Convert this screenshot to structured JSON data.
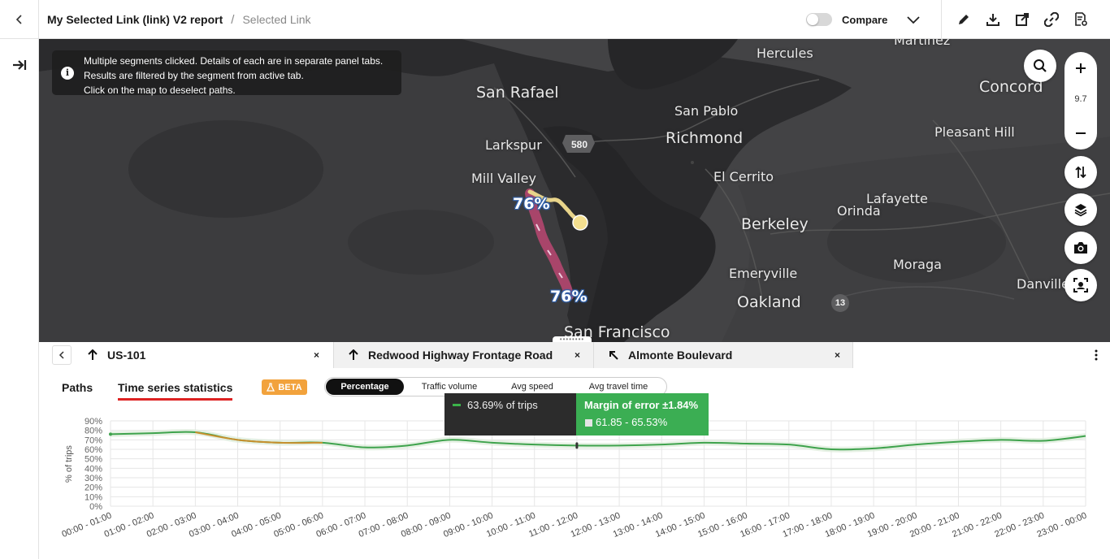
{
  "header": {
    "title": "My Selected Link (link) V2 report",
    "separator": "/",
    "subtitle": "Selected Link",
    "compare_label": "Compare"
  },
  "map": {
    "info_lines": [
      "Multiple segments clicked. Details of each are in separate panel tabs.",
      "Results are filtered by the segment from active tab.",
      "Click on the map to deselect paths."
    ],
    "zoom_level": "9.7",
    "places": {
      "hercules": "Hercules",
      "martinez": "Martinez",
      "concord": "Concord",
      "san_rafael": "San Rafael",
      "san_pablo": "San Pablo",
      "richmond": "Richmond",
      "pleasant_hill": "Pleasant Hill",
      "larkspur": "Larkspur",
      "mill_valley": "Mill Valley",
      "el_cerrito": "El Cerrito",
      "lafayette": "Lafayette",
      "berkeley": "Berkeley",
      "orinda": "Orinda",
      "moraga": "Moraga",
      "emeryville": "Emeryville",
      "oakland": "Oakland",
      "danville": "Danville",
      "san_francisco": "San Francisco"
    },
    "highway_580": "580",
    "highway_13": "13",
    "badges": [
      "76%",
      "76%"
    ]
  },
  "panel": {
    "tabs": [
      {
        "label": "US-101",
        "direction": "arrow-up-icon"
      },
      {
        "label": "Redwood Highway Frontage Road",
        "direction": "arrow-up-icon"
      },
      {
        "label": "Almonte Boulevard",
        "direction": "arrow-up-left-icon"
      }
    ],
    "close_glyph": "×",
    "subtabs": {
      "paths": "Paths",
      "time_series": "Time series statistics"
    },
    "beta_label": "BETA",
    "metrics": [
      "Percentage",
      "Traffic volume",
      "Avg speed",
      "Avg travel time"
    ]
  },
  "tooltip": {
    "value": "63.69% of trips",
    "margin": "Margin of error ±1.84%",
    "range": "61.85 - 65.53%"
  },
  "colors": {
    "series_line": "#3fa34d",
    "series_highlight": "#c8902e",
    "tooltip_green": "#3bae53",
    "route": "#a8456a",
    "route_alt": "#e8d48a"
  },
  "chart_data": {
    "type": "line",
    "ylabel": "% of trips",
    "y_ticks": [
      "0%",
      "10%",
      "20%",
      "30%",
      "40%",
      "50%",
      "60%",
      "70%",
      "80%",
      "90%"
    ],
    "ylim": [
      0,
      90
    ],
    "categories": [
      "00:00 - 01:00",
      "01:00 - 02:00",
      "02:00 - 03:00",
      "03:00 - 04:00",
      "04:00 - 05:00",
      "05:00 - 06:00",
      "06:00 - 07:00",
      "07:00 - 08:00",
      "08:00 - 09:00",
      "09:00 - 10:00",
      "10:00 - 11:00",
      "11:00 - 12:00",
      "12:00 - 13:00",
      "13:00 - 14:00",
      "14:00 - 15:00",
      "15:00 - 16:00",
      "16:00 - 17:00",
      "17:00 - 18:00",
      "18:00 - 19:00",
      "19:00 - 20:00",
      "20:00 - 21:00",
      "21:00 - 22:00",
      "22:00 - 23:00",
      "23:00 - 00:00"
    ],
    "values": [
      76,
      77,
      78,
      70,
      67,
      67,
      62,
      64,
      70,
      67,
      65,
      64,
      64,
      65,
      67,
      66,
      65,
      60,
      61,
      65,
      68,
      70,
      69,
      74
    ],
    "highlight_range": [
      2,
      5
    ],
    "selected_index": 11,
    "grid": true
  }
}
